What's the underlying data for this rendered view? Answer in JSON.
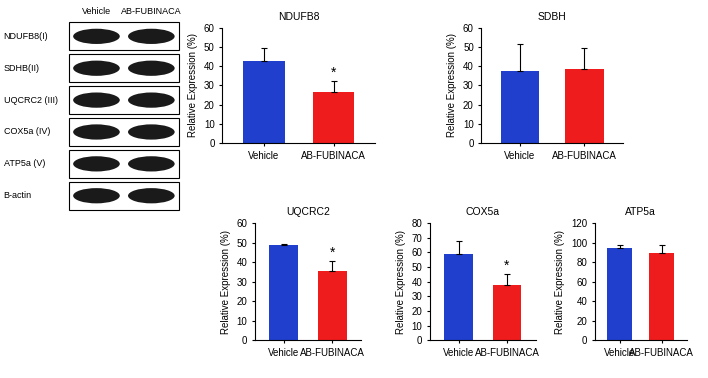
{
  "blot": {
    "conditions": [
      "Vehicle",
      "AB-FUBINACA"
    ],
    "proteins": [
      "NDUFB8(I)",
      "SDHB(II)",
      "UQCRC2 (III)",
      "COX5a (IV)",
      "ATP5a (V)",
      "B-actin"
    ]
  },
  "chart_data": [
    {
      "type": "bar",
      "title": "NDUFB8",
      "ylabel": "Relative Expression (%)",
      "categories": [
        "Vehicle",
        "AB-FUBINACA"
      ],
      "values": [
        42.5,
        26.5
      ],
      "errors": [
        7,
        6
      ],
      "colors": [
        "#1f3fcc",
        "#ee1c1c"
      ],
      "ylim": [
        0,
        60
      ],
      "yticks": [
        0,
        10,
        20,
        30,
        40,
        50,
        60
      ],
      "annotations": [
        {
          "category": "AB-FUBINACA",
          "text": "*"
        }
      ]
    },
    {
      "type": "bar",
      "title": "SDBH",
      "ylabel": "Relative Expression (%)",
      "categories": [
        "Vehicle",
        "AB-FUBINACA"
      ],
      "values": [
        37.5,
        38.5
      ],
      "errors": [
        14,
        11
      ],
      "colors": [
        "#1f3fcc",
        "#ee1c1c"
      ],
      "ylim": [
        0,
        60
      ],
      "yticks": [
        0,
        10,
        20,
        30,
        40,
        50,
        60
      ]
    },
    {
      "type": "bar",
      "title": "UQCRC2",
      "ylabel": "Relative Expression (%)",
      "categories": [
        "Vehicle",
        "AB-FUBINACA"
      ],
      "values": [
        48.5,
        35.5
      ],
      "errors": [
        1,
        5
      ],
      "colors": [
        "#1f3fcc",
        "#ee1c1c"
      ],
      "ylim": [
        0,
        60
      ],
      "yticks": [
        0,
        10,
        20,
        30,
        40,
        50,
        60
      ],
      "annotations": [
        {
          "category": "AB-FUBINACA",
          "text": "*"
        }
      ]
    },
    {
      "type": "bar",
      "title": "COX5a",
      "ylabel": "Relative Expression (%)",
      "categories": [
        "Vehicle",
        "AB-FUBINACA"
      ],
      "values": [
        59,
        38
      ],
      "errors": [
        9,
        7
      ],
      "colors": [
        "#1f3fcc",
        "#ee1c1c"
      ],
      "ylim": [
        0,
        80
      ],
      "yticks": [
        0,
        10,
        20,
        30,
        40,
        50,
        60,
        70,
        80
      ],
      "annotations": [
        {
          "category": "AB-FUBINACA",
          "text": "*"
        }
      ]
    },
    {
      "type": "bar",
      "title": "ATP5a",
      "ylabel": "Relative Expression (%)",
      "categories": [
        "Vehicle",
        "AB-FUBINACA"
      ],
      "values": [
        94,
        89
      ],
      "errors": [
        3,
        8
      ],
      "colors": [
        "#1f3fcc",
        "#ee1c1c"
      ],
      "ylim": [
        0,
        120
      ],
      "yticks": [
        0,
        20,
        40,
        60,
        80,
        100,
        120
      ]
    }
  ]
}
